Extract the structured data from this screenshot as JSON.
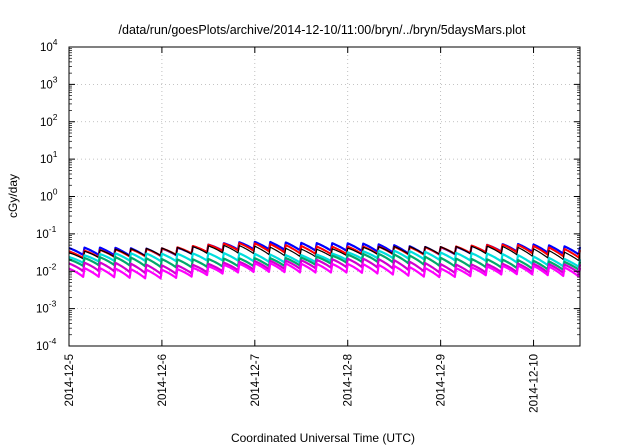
{
  "chart_data": {
    "type": "line",
    "title": "/data/run/goesPlots/archive/2014-12-10/11:00/bryn/../bryn/5daysMars.plot",
    "xlabel": "Coordinated Universal Time (UTC)",
    "ylabel": "cGy/day",
    "yscale": "log",
    "ylim": [
      0.0001,
      10000
    ],
    "xlim": [
      "2014-12-05T00:00",
      "2014-12-10T12:00"
    ],
    "grid": true,
    "x_ticks": [
      "2014-12-5",
      "2014-12-6",
      "2014-12-7",
      "2014-12-8",
      "2014-12-9",
      "2014-12-10"
    ],
    "y_ticks": [
      {
        "base": "10",
        "exp": "-4"
      },
      {
        "base": "10",
        "exp": "-3"
      },
      {
        "base": "10",
        "exp": "-2"
      },
      {
        "base": "10",
        "exp": "-1"
      },
      {
        "base": "10",
        "exp": "0"
      },
      {
        "base": "10",
        "exp": "1"
      },
      {
        "base": "10",
        "exp": "2"
      },
      {
        "base": "10",
        "exp": "3"
      },
      {
        "base": "10",
        "exp": "4"
      }
    ],
    "series": [
      {
        "color": "#0000ff",
        "level": 0.055,
        "drop": 0.6,
        "lw": 2.2
      },
      {
        "color": "#ff0000",
        "level": 0.05,
        "drop": 0.6,
        "lw": 2.0
      },
      {
        "color": "#000000",
        "level": 0.046,
        "drop": 0.6,
        "lw": 1.2
      },
      {
        "color": "#00dddd",
        "level": 0.032,
        "drop": 0.6,
        "lw": 2.2
      },
      {
        "color": "#00a86b",
        "level": 0.025,
        "drop": 0.58,
        "lw": 2.2
      },
      {
        "color": "#d000d0",
        "level": 0.019,
        "drop": 0.56,
        "lw": 2.2
      },
      {
        "color": "#ff00ff",
        "level": 0.015,
        "drop": 0.55,
        "lw": 2.2
      }
    ],
    "sawtooth_period_hours": 4,
    "note_on_values": "approximate, read from log axis"
  }
}
